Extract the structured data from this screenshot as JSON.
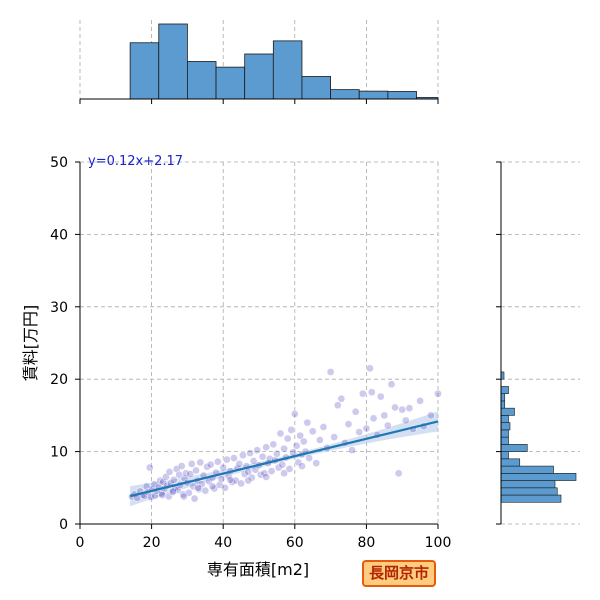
{
  "chart_data": {
    "type": "scatter",
    "title": "",
    "xlabel": "専有面積[m2]",
    "ylabel": "賃料[万円]",
    "xlim": [
      0,
      100
    ],
    "ylim": [
      0,
      50
    ],
    "x_ticks": [
      0,
      20,
      40,
      60,
      80,
      100
    ],
    "y_ticks": [
      0,
      10,
      20,
      30,
      40,
      50
    ],
    "grid": true,
    "regression": {
      "equation_label": "y=0.12x+2.17",
      "slope": 0.12,
      "intercept": 2.17,
      "x_range": [
        14,
        100
      ]
    },
    "points": [
      [
        14.5,
        3.8
      ],
      [
        15.2,
        4.1
      ],
      [
        16.0,
        3.6
      ],
      [
        16.8,
        4.5
      ],
      [
        17.5,
        4.0
      ],
      [
        18.0,
        3.9
      ],
      [
        18.6,
        5.2
      ],
      [
        19.0,
        4.4
      ],
      [
        19.5,
        7.8
      ],
      [
        19.8,
        3.7
      ],
      [
        20.2,
        4.8
      ],
      [
        20.8,
        5.5
      ],
      [
        21.0,
        3.9
      ],
      [
        21.5,
        4.6
      ],
      [
        22.0,
        5.1
      ],
      [
        22.4,
        6.0
      ],
      [
        22.8,
        4.2
      ],
      [
        23.2,
        5.8
      ],
      [
        23.6,
        4.9
      ],
      [
        24.0,
        6.5
      ],
      [
        24.3,
        5.3
      ],
      [
        24.8,
        3.8
      ],
      [
        25.0,
        7.2
      ],
      [
        25.4,
        5.6
      ],
      [
        25.8,
        4.4
      ],
      [
        26.2,
        6.1
      ],
      [
        26.6,
        5.0
      ],
      [
        27.0,
        7.6
      ],
      [
        27.3,
        4.7
      ],
      [
        27.7,
        6.8
      ],
      [
        28.0,
        5.4
      ],
      [
        28.4,
        8.0
      ],
      [
        28.8,
        4.1
      ],
      [
        29.2,
        6.3
      ],
      [
        29.6,
        7.0
      ],
      [
        30.0,
        5.7
      ],
      [
        30.4,
        4.3
      ],
      [
        30.8,
        6.9
      ],
      [
        31.2,
        8.3
      ],
      [
        31.6,
        5.2
      ],
      [
        32.0,
        3.5
      ],
      [
        32.4,
        7.4
      ],
      [
        32.8,
        6.0
      ],
      [
        33.2,
        4.8
      ],
      [
        33.6,
        8.5
      ],
      [
        34.0,
        5.5
      ],
      [
        34.5,
        6.7
      ],
      [
        35.0,
        4.6
      ],
      [
        35.5,
        7.9
      ],
      [
        36.0,
        5.9
      ],
      [
        36.5,
        8.2
      ],
      [
        37.0,
        6.4
      ],
      [
        37.5,
        4.9
      ],
      [
        38.0,
        7.1
      ],
      [
        38.5,
        8.6
      ],
      [
        39.0,
        5.4
      ],
      [
        39.5,
        6.2
      ],
      [
        40.0,
        7.8
      ],
      [
        40.5,
        5.0
      ],
      [
        41.0,
        8.9
      ],
      [
        41.5,
        6.6
      ],
      [
        42.0,
        7.3
      ],
      [
        42.5,
        5.8
      ],
      [
        43.0,
        9.1
      ],
      [
        43.5,
        6.0
      ],
      [
        44.0,
        7.7
      ],
      [
        44.5,
        8.3
      ],
      [
        45.0,
        5.6
      ],
      [
        45.5,
        9.5
      ],
      [
        46.0,
        6.9
      ],
      [
        46.5,
        8.0
      ],
      [
        47.0,
        7.2
      ],
      [
        47.5,
        9.8
      ],
      [
        48.0,
        6.4
      ],
      [
        48.5,
        8.7
      ],
      [
        49.0,
        7.5
      ],
      [
        49.5,
        10.2
      ],
      [
        50.0,
        8.1
      ],
      [
        50.5,
        6.8
      ],
      [
        51.0,
        9.3
      ],
      [
        51.5,
        7.0
      ],
      [
        52.0,
        10.6
      ],
      [
        52.5,
        8.4
      ],
      [
        53.0,
        9.0
      ],
      [
        53.5,
        7.3
      ],
      [
        54.0,
        11.0
      ],
      [
        54.5,
        8.8
      ],
      [
        55.0,
        9.7
      ],
      [
        55.5,
        7.8
      ],
      [
        56.0,
        12.5
      ],
      [
        56.5,
        8.2
      ],
      [
        57.0,
        10.4
      ],
      [
        57.5,
        9.2
      ],
      [
        58.0,
        11.8
      ],
      [
        58.5,
        7.6
      ],
      [
        59.0,
        13.0
      ],
      [
        59.5,
        9.9
      ],
      [
        60.0,
        15.2
      ],
      [
        60.5,
        10.8
      ],
      [
        61.0,
        8.5
      ],
      [
        61.5,
        12.2
      ],
      [
        62.0,
        9.6
      ],
      [
        62.5,
        11.4
      ],
      [
        63.0,
        10.0
      ],
      [
        63.5,
        14.0
      ],
      [
        64.0,
        9.1
      ],
      [
        65.0,
        12.8
      ],
      [
        66.0,
        8.4
      ],
      [
        67.0,
        11.6
      ],
      [
        68.0,
        13.4
      ],
      [
        69.0,
        10.5
      ],
      [
        70.0,
        21.0
      ],
      [
        71.0,
        12.0
      ],
      [
        72.0,
        16.4
      ],
      [
        73.0,
        17.3
      ],
      [
        74.0,
        11.2
      ],
      [
        75.0,
        13.8
      ],
      [
        76.0,
        10.2
      ],
      [
        77.0,
        15.5
      ],
      [
        78.0,
        12.7
      ],
      [
        79.0,
        18.0
      ],
      [
        80.0,
        13.2
      ],
      [
        81.0,
        21.5
      ],
      [
        81.5,
        18.2
      ],
      [
        82.0,
        14.6
      ],
      [
        83.0,
        12.3
      ],
      [
        84.0,
        17.6
      ],
      [
        85.0,
        15.0
      ],
      [
        86.0,
        13.6
      ],
      [
        87.0,
        19.3
      ],
      [
        88.0,
        16.1
      ],
      [
        89.0,
        7.0
      ],
      [
        90.0,
        15.8
      ],
      [
        91.0,
        14.3
      ],
      [
        92.0,
        16.0
      ],
      [
        93.0,
        13.1
      ],
      [
        95.0,
        17.0
      ],
      [
        96.0,
        13.5
      ],
      [
        98.0,
        15.0
      ],
      [
        100.0,
        18.0
      ],
      [
        23.0,
        4.0
      ],
      [
        26.0,
        4.5
      ],
      [
        29.0,
        3.8
      ],
      [
        33.0,
        5.0
      ],
      [
        37.0,
        5.2
      ],
      [
        42.0,
        6.1
      ],
      [
        47.0,
        6.0
      ],
      [
        52.0,
        6.5
      ],
      [
        57.0,
        7.0
      ],
      [
        62.0,
        8.0
      ]
    ],
    "x_hist": {
      "bin_edges": [
        14,
        22,
        30,
        38,
        46,
        54,
        62,
        70,
        78,
        86,
        94,
        100
      ],
      "counts": [
        15,
        20,
        10,
        8.5,
        12,
        15.5,
        6,
        2.5,
        2.1,
        2,
        0.4
      ]
    },
    "y_hist": {
      "bin_edges": [
        3,
        4,
        5,
        6,
        7,
        8,
        9,
        10,
        11,
        12,
        13,
        14,
        15,
        16,
        17,
        18,
        19,
        20,
        21
      ],
      "counts": [
        8,
        7.5,
        7.2,
        10,
        7,
        2.5,
        1,
        3.5,
        1,
        1,
        1.2,
        1,
        1.8,
        0.5,
        0.5,
        1,
        0,
        0.4
      ]
    },
    "colors": {
      "point": "#4a3fbf",
      "line": "#1f77b4",
      "band": "#aec7e8",
      "hist_fill": "#5b9bd0",
      "hist_edge": "#1a1a1a",
      "grid": "#aaaaaa",
      "equation": "#1a24c8"
    }
  },
  "annotation": {
    "city_label": "長岡京市"
  }
}
